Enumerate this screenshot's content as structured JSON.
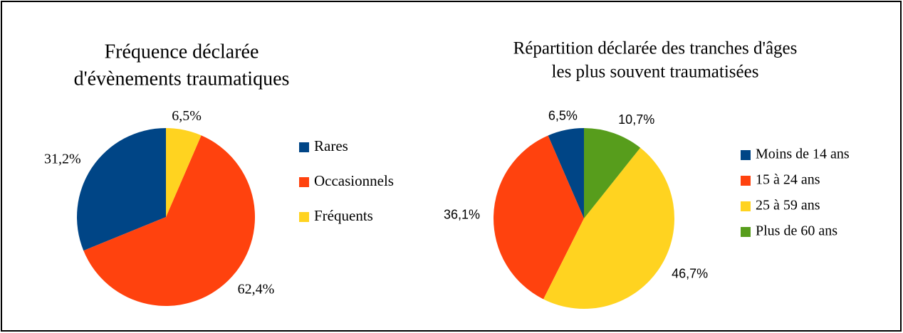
{
  "chart_data": [
    {
      "type": "pie",
      "title": [
        "Fréquence déclarée",
        "d'évènements traumatiques"
      ],
      "categories": [
        "Rares",
        "Occasionnels",
        "Fréquents"
      ],
      "values": [
        31.2,
        62.4,
        6.5
      ],
      "value_labels": [
        "31,2%",
        "62,4%",
        "6,5%"
      ],
      "colors": [
        "#004586",
        "#ff420e",
        "#ffd320"
      ]
    },
    {
      "type": "pie",
      "title": [
        "Répartition déclarée des tranches d'âges",
        "les plus souvent traumatisées"
      ],
      "categories": [
        "Moins de 14 ans",
        "15 à 24 ans",
        "25 à 59 ans",
        "Plus de 60 ans"
      ],
      "values": [
        6.5,
        36.1,
        46.7,
        10.7
      ],
      "value_labels": [
        "6,5%",
        "36,1%",
        "46,7%",
        "10,7%"
      ],
      "colors": [
        "#004586",
        "#ff420e",
        "#ffd320",
        "#579d1c"
      ]
    }
  ]
}
